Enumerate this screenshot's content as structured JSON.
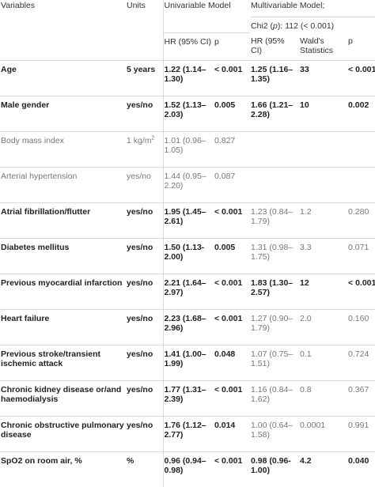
{
  "header": {
    "variables": "Variables",
    "units": "Units",
    "univariable_model": "Univariable Model",
    "multivariable_model": "Multivariable Model;",
    "chi2_line": "Chi2 (p): 112 (< 0.001)",
    "hr_uni": "HR (95% CI)",
    "p_uni": "p",
    "hr_multi": "HR (95% CI)",
    "wald": "Wald's Statistics",
    "p_multi": "p"
  },
  "rows": [
    {
      "variable": "Age",
      "unit": "5 years",
      "hr_uni": "1.22 (1.14–1.30)",
      "p_uni": "< 0.001",
      "hr_multi": "1.25 (1.16–1.35)",
      "wald": "33",
      "p_multi": "< 0.001",
      "uni_bold": true,
      "multi_bold": true
    },
    {
      "variable": "Male gender",
      "unit": "yes/no",
      "hr_uni": "1.52 (1.13–2.03)",
      "p_uni": "0.005",
      "hr_multi": "1.66 (1.21–2.28)",
      "wald": "10",
      "p_multi": "0.002",
      "uni_bold": true,
      "multi_bold": true
    },
    {
      "variable": "Body mass index",
      "unit": "1 kg/m",
      "unit_sup": "2",
      "hr_uni": "1.01 (0.96–1.05)",
      "p_uni": "0.827",
      "hr_multi": "",
      "wald": "",
      "p_multi": "",
      "uni_bold": false,
      "multi_bold": false
    },
    {
      "variable": "Arterial hypertension",
      "unit": "yes/no",
      "hr_uni": "1.44 (0.95–2.20)",
      "p_uni": "0.087",
      "hr_multi": "",
      "wald": "",
      "p_multi": "",
      "uni_bold": false,
      "multi_bold": false
    },
    {
      "variable": "Atrial fibrillation/flutter",
      "unit": "yes/no",
      "hr_uni": "1.95 (1.45–2.61)",
      "p_uni": "< 0.001",
      "hr_multi": "1.23 (0.84–1.79)",
      "wald": "1.2",
      "p_multi": "0.280",
      "uni_bold": true,
      "multi_bold": false
    },
    {
      "variable": "Diabetes mellitus",
      "unit": "yes/no",
      "hr_uni": "1.50 (1.13-2.00)",
      "p_uni": "0.005",
      "hr_multi": "1.31 (0.98–1.75)",
      "wald": "3.3",
      "p_multi": "0.071",
      "uni_bold": true,
      "multi_bold": false
    },
    {
      "variable": "Previous myocardial infarction",
      "unit": "yes/no",
      "hr_uni": "2.21 (1.64–2.97)",
      "p_uni": "< 0.001",
      "hr_multi": "1.83 (1.30–2.57)",
      "wald": "12",
      "p_multi": "< 0.001",
      "uni_bold": true,
      "multi_bold": true
    },
    {
      "variable": "Heart failure",
      "unit": "yes/no",
      "hr_uni": "2.23 (1.68–2.96)",
      "p_uni": "< 0.001",
      "hr_multi": "1.27 (0.90–1.79)",
      "wald": "2.0",
      "p_multi": "0.160",
      "uni_bold": true,
      "multi_bold": false
    },
    {
      "variable": "Previous stroke/transient ischemic attack",
      "unit": "yes/no",
      "hr_uni": "1.41 (1.00–1.99)",
      "p_uni": "0.048",
      "hr_multi": "1.07 (0.75–1.51)",
      "wald": "0.1",
      "p_multi": "0.724",
      "uni_bold": true,
      "multi_bold": false
    },
    {
      "variable": "Chronic kidney disease or/and haemodialysis",
      "unit": "yes/no",
      "hr_uni": "1.77 (1.31–2.39)",
      "p_uni": "< 0.001",
      "hr_multi": "1.16 (0.84–1.62)",
      "wald": "0.8",
      "p_multi": "0.367",
      "uni_bold": true,
      "multi_bold": false
    },
    {
      "variable": "Chronic obstructive pulmonary disease",
      "unit": "yes/no",
      "hr_uni": "1.76 (1.12–2.77)",
      "p_uni": "0.014",
      "hr_multi": "1.00 (0.64–1.58)",
      "wald": "0.0001",
      "p_multi": "0.991",
      "uni_bold": true,
      "multi_bold": false
    },
    {
      "variable": "SpO2 on room air, %",
      "unit": "%",
      "hr_uni": "0.96 (0.94–0.98)",
      "p_uni": "< 0.001",
      "hr_multi": "0.98 (0.96-1.00)",
      "wald": "4.2",
      "p_multi": "0.040",
      "uni_bold": true,
      "multi_bold": true
    }
  ]
}
